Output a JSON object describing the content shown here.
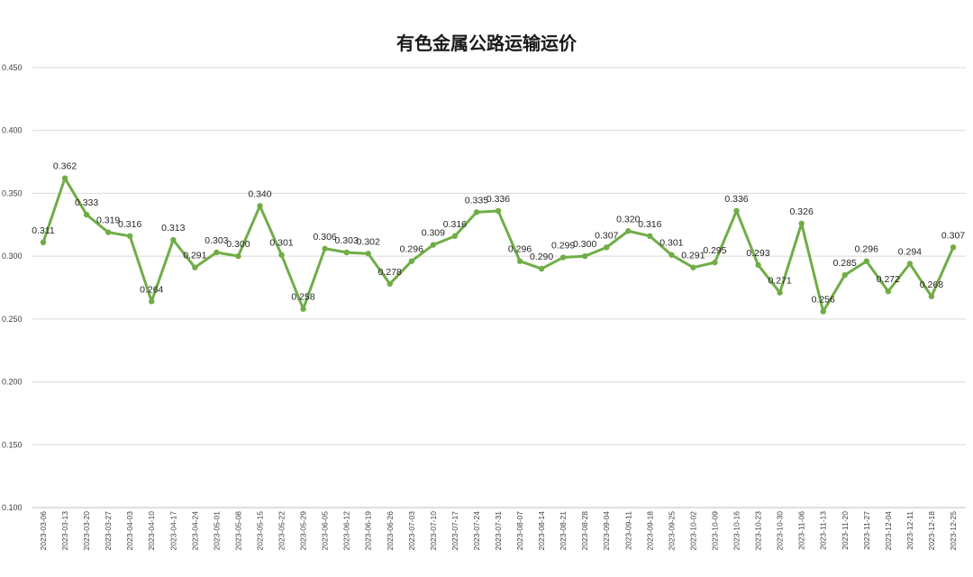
{
  "chart_data": {
    "type": "line",
    "title": "有色金属公路运输运价",
    "xlabel": "",
    "ylabel": "",
    "ylim": [
      0.1,
      0.45
    ],
    "yticks": [
      "0.100",
      "0.150",
      "0.200",
      "0.250",
      "0.300",
      "0.350",
      "0.400",
      "0.450"
    ],
    "grid": true,
    "legend": "none",
    "colors": {
      "line": "#70ad47",
      "grid": "#d9d9d9",
      "axis": "#bfbfbf",
      "text": "#404040"
    },
    "categories": [
      "2023-03-06",
      "2023-03-13",
      "2023-03-20",
      "2023-03-27",
      "2023-04-03",
      "2023-04-10",
      "2023-04-17",
      "2023-04-24",
      "2023-05-01",
      "2023-05-08",
      "2023-05-15",
      "2023-05-22",
      "2023-05-29",
      "2023-06-05",
      "2023-06-12",
      "2023-06-19",
      "2023-06-26",
      "2023-07-03",
      "2023-07-10",
      "2023-07-17",
      "2023-07-24",
      "2023-07-31",
      "2023-08-07",
      "2023-08-14",
      "2023-08-21",
      "2023-08-28",
      "2023-09-04",
      "2023-09-11",
      "2023-09-18",
      "2023-09-25",
      "2023-10-02",
      "2023-10-09",
      "2023-10-16",
      "2023-10-23",
      "2023-10-30",
      "2023-11-06",
      "2023-11-13",
      "2023-11-20",
      "2023-11-27",
      "2023-12-04",
      "2023-12-11",
      "2023-12-18",
      "2023-12-25"
    ],
    "series": [
      {
        "values": [
          0.311,
          0.362,
          0.333,
          0.319,
          0.316,
          0.264,
          0.313,
          0.291,
          0.303,
          0.3,
          0.34,
          0.301,
          0.258,
          0.306,
          0.303,
          0.302,
          0.278,
          0.296,
          0.309,
          0.316,
          0.335,
          0.336,
          0.296,
          0.29,
          0.299,
          0.3,
          0.307,
          0.32,
          0.316,
          0.301,
          0.291,
          0.295,
          0.336,
          0.293,
          0.271,
          0.326,
          0.256,
          0.285,
          0.296,
          0.272,
          0.294,
          0.268,
          0.307
        ],
        "labels": [
          "0.311",
          "0.362",
          "0.333",
          "0.319",
          "0.316",
          "0.264",
          "0.313",
          "0.291",
          "0.303",
          "0.300",
          "0.340",
          "0.301",
          "0.258",
          "0.306",
          "0.303",
          "0.302",
          "0.278",
          "0.296",
          "0.309",
          "0.316",
          "0.335",
          "0.336",
          "0.296",
          "0.290",
          "0.299",
          "0.300",
          "0.307",
          "0.320",
          "0.316",
          "0.301",
          "0.291",
          "0.295",
          "0.336",
          "0.293",
          "0.271",
          "0.326",
          "0.256",
          "0.285",
          "0.296",
          "0.272",
          "0.294",
          "0.268",
          "0.307"
        ]
      }
    ]
  }
}
